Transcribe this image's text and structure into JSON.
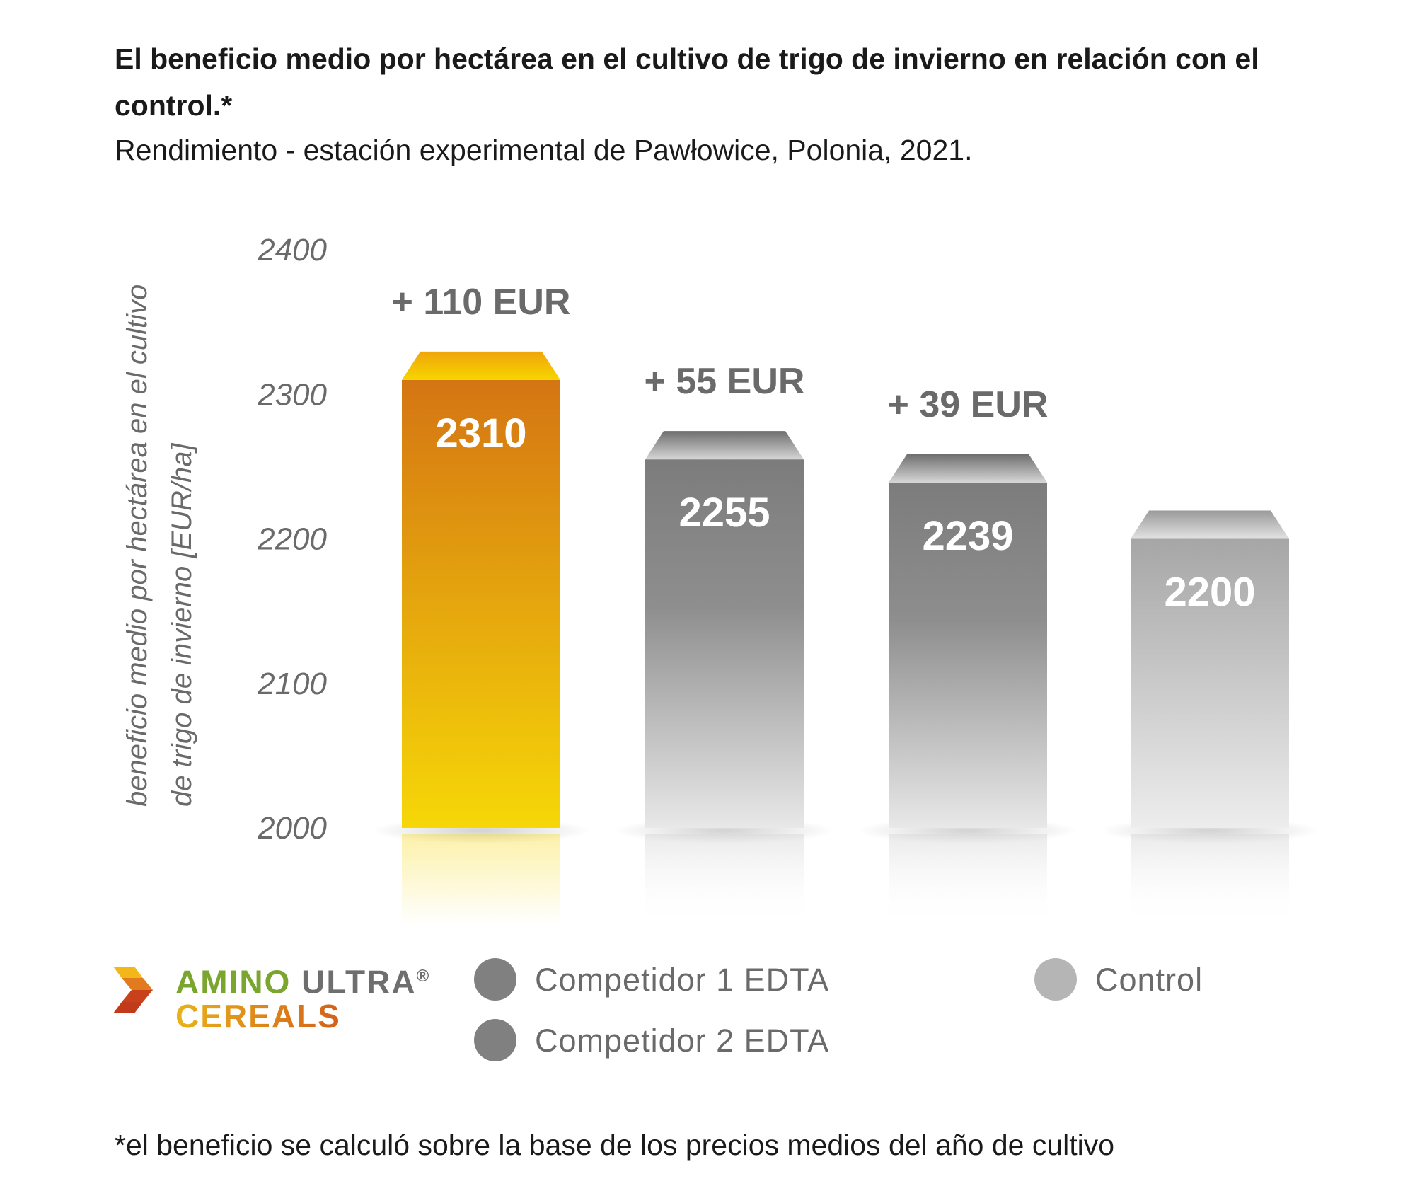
{
  "header": {
    "title": "El beneficio medio por hectárea en el cultivo de trigo de invierno en relación con el control.*",
    "subtitle": "Rendimiento - estación experimental de Pawłowice, Polonia, 2021."
  },
  "footnote": "*el beneficio se calculó sobre la base de los precios medios del año de cultivo",
  "brand": {
    "word1": "AMINO",
    "word2": "ULTRA",
    "reg": "®",
    "word3": "CEREALS"
  },
  "legend": [
    {
      "label": "Competidor 1 EDTA",
      "color": "#808080"
    },
    {
      "label": "Competidor 2 EDTA",
      "color": "#808080"
    },
    {
      "label": "Control",
      "color": "#b5b5b5"
    }
  ],
  "chart_data": {
    "type": "bar",
    "title": "El beneficio medio por hectárea en el cultivo de trigo de invierno en relación con el control.*",
    "subtitle": "Rendimiento - estación experimental de Pawłowice, Polonia, 2021.",
    "ylabel": "beneficio medio por hectárea en el cultivo de trigo de invierno [EUR/ha]",
    "xlabel": "",
    "ylim": [
      2000,
      2400
    ],
    "yticks": [
      2000,
      2100,
      2200,
      2300,
      2400
    ],
    "grid": false,
    "legend_position": "bottom",
    "categories": [
      "AMINO ULTRA CEREALS",
      "Competidor 1 EDTA",
      "Competidor 2 EDTA",
      "Control"
    ],
    "values": [
      2310,
      2255,
      2239,
      2200
    ],
    "value_labels": [
      "2310",
      "2255",
      "2239",
      "2200"
    ],
    "difference_labels": [
      "+ 110 EUR",
      "+ 55 EUR",
      "+ 39 EUR",
      ""
    ],
    "colors": {
      "amino_top": "#d67a13",
      "amino_bottom": "#f5d409",
      "competitor_top": "#7f7f7f",
      "competitor_bottom": "#e6e6e6",
      "control_top": "#a9a9a9",
      "control_bottom": "#ececec"
    }
  }
}
